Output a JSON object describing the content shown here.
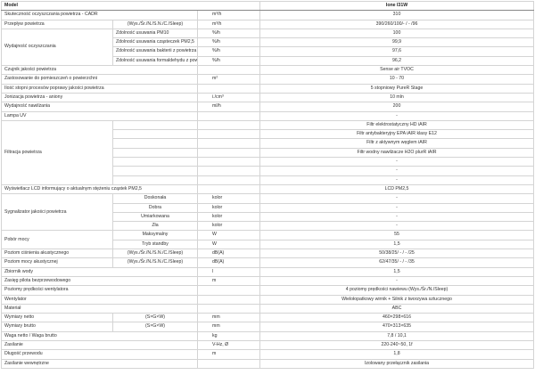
{
  "table": {
    "header": [
      "Model",
      "Ione I31W"
    ],
    "rows": [
      {
        "label": "Skuteczność oczyszczania powietrza - CADR",
        "unit": "m³/h",
        "value": "310"
      },
      {
        "label": "Przepływ powietrza",
        "param": "(Wys./Śr./N./S.N./C./Sleep)",
        "unit": "m³/h",
        "value": "390/260/100/- / - /96"
      },
      {
        "label": "Wydajność oczyszczania",
        "items": [
          {
            "name": "Zdolność usuwania PM10",
            "unit": "%/h",
            "value": "100"
          },
          {
            "name": "Zdolność usuwania cząsteczek PM2,5",
            "unit": "%/h",
            "value": "99,9"
          },
          {
            "name": "Zdolność usuwania bakterii z powietrza",
            "unit": "%/h",
            "value": "97,6"
          },
          {
            "name": "Zdolność usuwania formaldehydu z pow.",
            "unit": "%/h",
            "value": "96,2"
          }
        ]
      },
      {
        "label": "Czujnik jakości powietrza",
        "value": "Sense air TVOC"
      },
      {
        "label": "Zastosowanie do pomieszczeń o powierzchni",
        "unit": "m²",
        "value": "10 - 70"
      },
      {
        "label": "Ilość stopni procesów poprawy jakości powietrza",
        "value": "5 stopniowy PureR Stage"
      },
      {
        "label": "Jonizacja powietrza - aniony",
        "unit": "i./cm³",
        "value": "10 mln"
      },
      {
        "label": "Wydajność nawilżania",
        "unit": "ml/h",
        "value": "200"
      },
      {
        "label": "Lampa UV",
        "value": "-"
      },
      {
        "label": "Filtracja powietrza",
        "items": [
          {
            "value": "Filtr elektrostatyczny HD iAIR"
          },
          {
            "value": "Filtr antybakteryjny EPA iAIR klasy E12"
          },
          {
            "value": "Filtr z aktywnym węglem iAIR"
          },
          {
            "value": "Filtr wodny nawilżacze H2O plurR iAIR"
          },
          {
            "value": "-"
          },
          {
            "value": "-"
          },
          {
            "value": "-"
          }
        ]
      },
      {
        "label": "Wyświetlacz LCD informujący o aktualnym stężeniu cząstek PM2,5",
        "value": "LCD PM2,5"
      },
      {
        "label": "Sygnalizator jakości powietrza",
        "items": [
          {
            "name": "Doskonała",
            "unit": "kolor",
            "value": "-"
          },
          {
            "name": "Dobra",
            "unit": "kolor",
            "value": "-"
          },
          {
            "name": "Umiarkowana",
            "unit": "kolor",
            "value": "-"
          },
          {
            "name": "Zła",
            "unit": "kolor",
            "value": "-"
          }
        ]
      },
      {
        "label": "Pobór mocy",
        "items": [
          {
            "name": "Maksymalny",
            "unit": "W",
            "value": "55"
          },
          {
            "name": "Tryb standby",
            "unit": "W",
            "value": "1,5"
          }
        ]
      },
      {
        "label": "Poziom ciśnienia akustycznego",
        "param": "(Wys./Śr./N./S.N./C./Sleep)",
        "unit": "dB(A)",
        "value": "50/38/25/ - / - /25"
      },
      {
        "label": "Poziom mocy akustycznej",
        "param": "(Wys./Śr./N./S.N./C./Sleep)",
        "unit": "dB(A)",
        "value": "62/47/35/ - / - /35"
      },
      {
        "label": "Zbiornik wody",
        "unit": "l",
        "value": "1,5"
      },
      {
        "label": "Zasięg pilota bezprzewodowego",
        "unit": "m",
        "value": "-"
      },
      {
        "label": "Poziomy prędkości wentylatora",
        "value": "4 poziomy prędkości nawiewu (Wys./Śr./N./Sleep)"
      },
      {
        "label": "Wentylator",
        "value": "Wielołopatkowy wirnik + Silnik z tworzywa sztucznego"
      },
      {
        "label": "Materiał",
        "value": "ABC"
      },
      {
        "label": "Wymiary netto",
        "param": "(S×G×W)",
        "unit": "mm",
        "value": "460×298×616"
      },
      {
        "label": "Wymiary brutto",
        "param": "(S×G×W)",
        "unit": "mm",
        "value": "470×313×635"
      },
      {
        "label": "Waga netto / Waga brutto",
        "unit": "kg",
        "value": "7,8 / 10,1"
      },
      {
        "label": "Zasilanie",
        "unit": "V-Hz, Ø",
        "value": "220-240~50, 1f"
      },
      {
        "label": "Długość przewodu",
        "unit": "m",
        "value": "1,8"
      },
      {
        "label": "Zasilanie wewnętrzne",
        "value": "Izolowany przełącznik zasilania"
      }
    ]
  }
}
